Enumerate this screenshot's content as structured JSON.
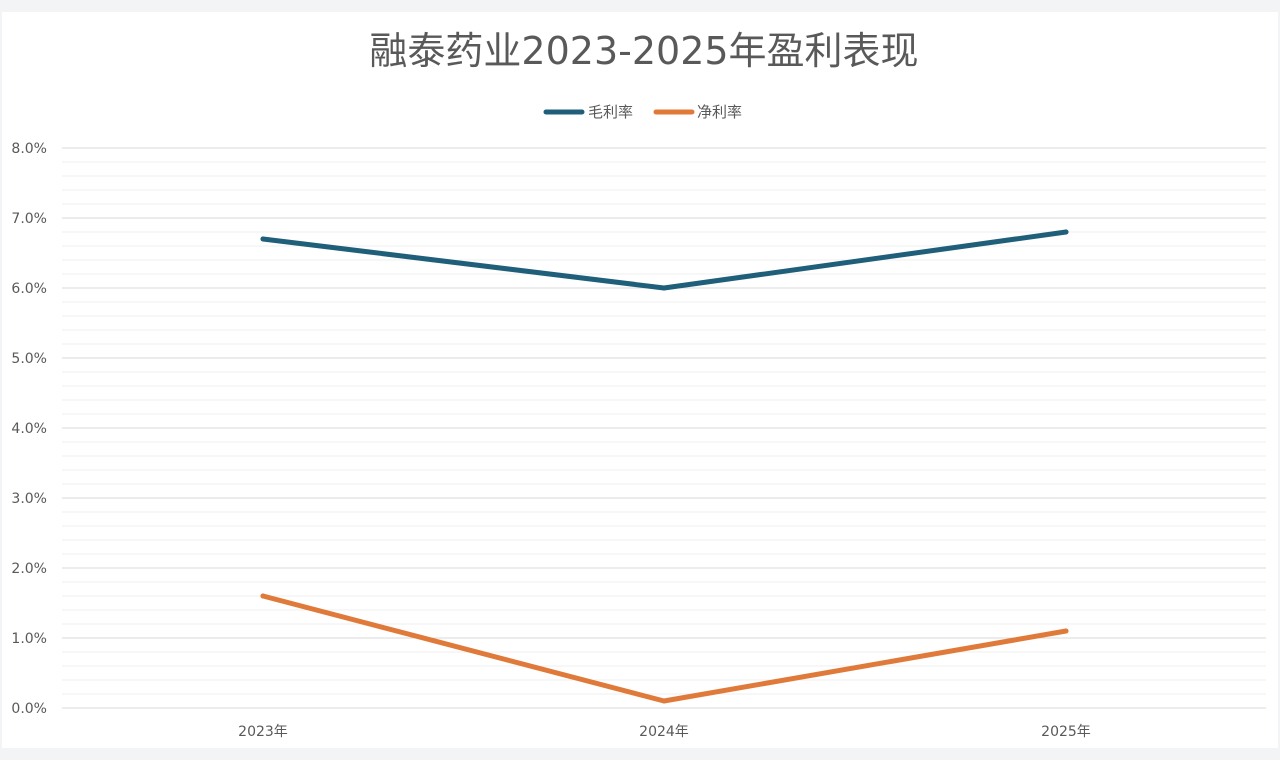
{
  "chart_data": {
    "type": "line",
    "title": "融泰药业2023-2025年盈利表现",
    "categories": [
      "2023年",
      "2024年",
      "2025年"
    ],
    "series": [
      {
        "name": "毛利率",
        "values": [
          0.067,
          0.06,
          0.068
        ],
        "color": "#1f5f7a"
      },
      {
        "name": "净利率",
        "values": [
          0.016,
          0.001,
          0.011
        ],
        "color": "#e07a3a"
      }
    ],
    "ylim": [
      0,
      0.08
    ],
    "yticks": [
      "0.0%",
      "1.0%",
      "2.0%",
      "3.0%",
      "4.0%",
      "5.0%",
      "6.0%",
      "7.0%",
      "8.0%"
    ],
    "grid": true,
    "legend_position": "top"
  }
}
